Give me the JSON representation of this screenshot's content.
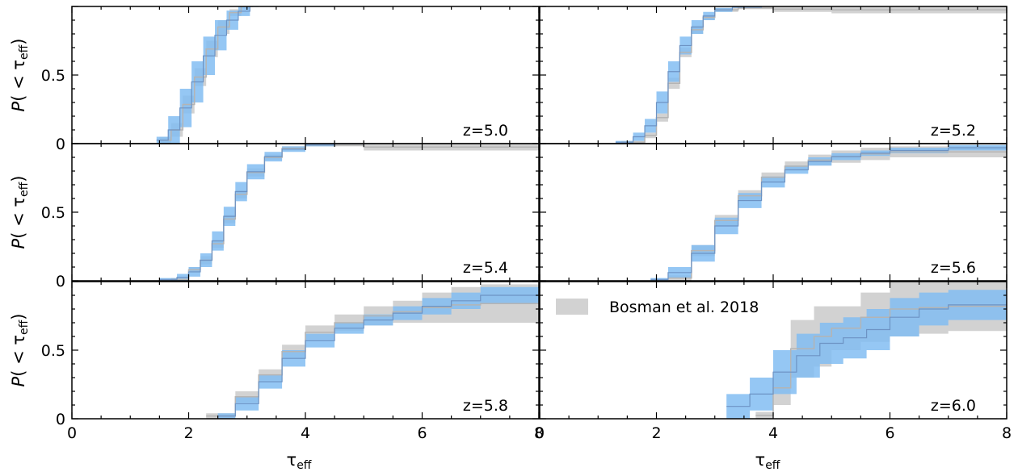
{
  "chart_data": {
    "type": "line",
    "xlabel": "τ",
    "xlabel_sub": "eff",
    "ylabel_prefix": "P( < τ",
    "ylabel_sub": "eff",
    "ylabel_suffix": ")",
    "xlim": [
      0,
      8
    ],
    "ylim": [
      0,
      1
    ],
    "xticks": [
      0,
      2,
      4,
      6,
      8
    ],
    "yticks": [
      0,
      0.5
    ],
    "ytick_labels": [
      "0",
      "0.5"
    ],
    "grid": false,
    "colors": {
      "simulation": "#82bdf2",
      "observed": "#d2d2d2",
      "observed_line": "#b4b4b4",
      "sim_line": "#6d93c4"
    },
    "legend": {
      "placement": "upper-left",
      "label": "Bosman et al. 2018"
    },
    "panels": [
      {
        "label": "z=5.0",
        "observed": {
          "x": [
            1.5,
            1.7,
            1.9,
            2.1,
            2.3,
            2.5,
            2.7,
            2.9,
            3.1
          ],
          "lower": [
            0,
            0.05,
            0.22,
            0.42,
            0.63,
            0.8,
            0.93,
            1.0,
            1.0
          ],
          "upper": [
            0.05,
            0.15,
            0.35,
            0.55,
            0.75,
            0.9,
            0.98,
            1.0,
            1.0
          ]
        },
        "simulation": {
          "x": [
            1.45,
            1.65,
            1.85,
            2.05,
            2.25,
            2.45,
            2.65,
            2.85,
            3.05,
            3.2
          ],
          "lower": [
            0,
            0,
            0.12,
            0.3,
            0.5,
            0.68,
            0.83,
            0.93,
            1.0,
            1.0
          ],
          "upper": [
            0.05,
            0.2,
            0.4,
            0.6,
            0.78,
            0.9,
            0.97,
            1.0,
            1.0,
            1.0
          ]
        }
      },
      {
        "label": "z=5.2",
        "observed": {
          "x": [
            1.4,
            1.8,
            2.0,
            2.2,
            2.4,
            2.6,
            2.8,
            3.0,
            3.4,
            4.0,
            5.0,
            8.0
          ],
          "lower": [
            0,
            0.04,
            0.16,
            0.4,
            0.63,
            0.8,
            0.9,
            0.96,
            0.98,
            0.96,
            0.95,
            0.95
          ],
          "upper": [
            0.02,
            0.08,
            0.22,
            0.48,
            0.7,
            0.86,
            0.94,
            0.99,
            1.0,
            1.0,
            1.0,
            1.0
          ]
        },
        "simulation": {
          "x": [
            1.3,
            1.6,
            1.8,
            2.0,
            2.2,
            2.4,
            2.6,
            2.8,
            3.0,
            3.3,
            3.8
          ],
          "lower": [
            0,
            0.02,
            0.08,
            0.22,
            0.45,
            0.65,
            0.8,
            0.9,
            0.96,
            0.99,
            1.0
          ],
          "upper": [
            0.02,
            0.08,
            0.18,
            0.38,
            0.6,
            0.78,
            0.9,
            0.96,
            0.99,
            1.0,
            1.0
          ]
        }
      },
      {
        "label": "z=5.4",
        "observed": {
          "x": [
            1.7,
            2.0,
            2.2,
            2.4,
            2.6,
            2.8,
            3.0,
            3.3,
            3.6,
            4.0,
            5.0,
            8.0
          ],
          "lower": [
            0,
            0.06,
            0.12,
            0.24,
            0.42,
            0.6,
            0.76,
            0.88,
            0.95,
            0.98,
            0.95,
            0.95
          ],
          "upper": [
            0.02,
            0.1,
            0.18,
            0.3,
            0.48,
            0.66,
            0.82,
            0.92,
            0.98,
            1.0,
            1.0,
            1.0
          ]
        },
        "simulation": {
          "x": [
            1.5,
            1.8,
            2.0,
            2.2,
            2.4,
            2.6,
            2.8,
            3.0,
            3.3,
            3.6,
            4.0,
            4.5,
            5.2
          ],
          "lower": [
            0,
            0,
            0.03,
            0.1,
            0.22,
            0.4,
            0.58,
            0.74,
            0.87,
            0.94,
            0.98,
            1.0,
            1.0
          ],
          "upper": [
            0.02,
            0.05,
            0.1,
            0.2,
            0.36,
            0.54,
            0.72,
            0.85,
            0.94,
            0.98,
            1.0,
            1.0,
            1.0
          ]
        }
      },
      {
        "label": "z=5.6",
        "observed": {
          "x": [
            2.2,
            2.6,
            3.0,
            3.4,
            3.8,
            4.2,
            4.6,
            5.0,
            5.5,
            6.0,
            7.0,
            8.0
          ],
          "lower": [
            0,
            0.18,
            0.4,
            0.58,
            0.72,
            0.8,
            0.84,
            0.86,
            0.88,
            0.9,
            0.9,
            0.9
          ],
          "upper": [
            0.04,
            0.26,
            0.48,
            0.66,
            0.79,
            0.87,
            0.92,
            0.95,
            0.97,
            0.98,
            0.98,
            0.98
          ]
        },
        "simulation": {
          "x": [
            1.9,
            2.2,
            2.6,
            3.0,
            3.4,
            3.8,
            4.2,
            4.6,
            5.0,
            5.5,
            6.0,
            7.0,
            8.0
          ],
          "lower": [
            0,
            0.02,
            0.14,
            0.34,
            0.53,
            0.68,
            0.78,
            0.84,
            0.88,
            0.91,
            0.93,
            0.95,
            0.96
          ],
          "upper": [
            0.02,
            0.1,
            0.26,
            0.46,
            0.64,
            0.76,
            0.84,
            0.9,
            0.93,
            0.95,
            0.97,
            0.99,
            1.0
          ]
        }
      },
      {
        "label": "z=5.8",
        "observed": {
          "x": [
            2.3,
            2.8,
            3.2,
            3.6,
            4.0,
            4.5,
            5.0,
            5.5,
            6.0,
            6.5,
            7.0,
            8.0
          ],
          "lower": [
            0,
            0.12,
            0.28,
            0.44,
            0.58,
            0.64,
            0.68,
            0.7,
            0.7,
            0.7,
            0.7,
            0.7
          ],
          "upper": [
            0.04,
            0.2,
            0.36,
            0.54,
            0.68,
            0.76,
            0.82,
            0.86,
            0.92,
            0.96,
            0.98,
            1.0
          ]
        },
        "simulation": {
          "x": [
            2.5,
            2.8,
            3.2,
            3.6,
            4.0,
            4.5,
            5.0,
            5.5,
            6.0,
            6.5,
            7.0,
            8.0
          ],
          "lower": [
            0,
            0.06,
            0.22,
            0.38,
            0.52,
            0.62,
            0.68,
            0.72,
            0.76,
            0.8,
            0.84,
            0.88
          ],
          "upper": [
            0.04,
            0.16,
            0.32,
            0.5,
            0.62,
            0.7,
            0.76,
            0.82,
            0.88,
            0.92,
            0.96,
            0.98
          ]
        }
      },
      {
        "label": "z=6.0",
        "observed": {
          "x": [
            3.7,
            4.0,
            4.3,
            4.7,
            5.0,
            5.5,
            6.0,
            6.5,
            7.0,
            8.0
          ],
          "lower": [
            0,
            0.1,
            0.3,
            0.38,
            0.5,
            0.56,
            0.6,
            0.62,
            0.64,
            0.64
          ],
          "upper": [
            0.05,
            0.35,
            0.72,
            0.82,
            0.82,
            0.92,
            1.0,
            1.0,
            1.0,
            1.0
          ]
        },
        "simulation": {
          "x": [
            3.2,
            3.6,
            4.0,
            4.4,
            4.8,
            5.2,
            5.6,
            6.0,
            6.5,
            7.0,
            8.0
          ],
          "lower": [
            0,
            0.06,
            0.18,
            0.3,
            0.4,
            0.44,
            0.5,
            0.6,
            0.68,
            0.72,
            0.74
          ],
          "upper": [
            0.18,
            0.3,
            0.5,
            0.62,
            0.7,
            0.74,
            0.8,
            0.88,
            0.92,
            0.94,
            0.96
          ]
        }
      }
    ]
  }
}
